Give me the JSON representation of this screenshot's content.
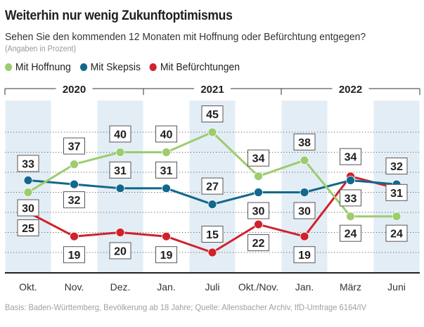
{
  "title": "Weiterhin nur wenig Zukunftoptimismus",
  "subtitle": "Sehen Sie den kommenden 12 Monaten mit Hoffnung oder Befürchtung entgegen?",
  "unit_note": "(Angaben in Prozent)",
  "footer": "Basis: Baden-Württemberg, Bevölkerung ab 18 Jahre; Quelle: Allensbacher Archiv, IfD-Umfrage 6164/IV",
  "chart_data": {
    "type": "line",
    "title": "Weiterhin nur wenig Zukunftoptimismus",
    "xlabel": "",
    "ylabel": "Prozent",
    "categories": [
      "Okt.",
      "Nov.",
      "Dez.",
      "Jan.",
      "Juli",
      "Okt./Nov.",
      "Jan.",
      "März",
      "Juni"
    ],
    "year_groups": [
      {
        "label": "2020",
        "start": 0,
        "end": 2
      },
      {
        "label": "2021",
        "start": 3,
        "end": 5
      },
      {
        "label": "2022",
        "start": 6,
        "end": 8
      }
    ],
    "shaded_columns": [
      0,
      2,
      4,
      6,
      8
    ],
    "series": [
      {
        "name": "Mit Hoffnung",
        "color": "#9ccc6e",
        "values": [
          30,
          37,
          40,
          40,
          45,
          34,
          38,
          24,
          24
        ],
        "label_pos": [
          "below",
          "above",
          "above",
          "above",
          "above",
          "above",
          "above",
          "below",
          "below"
        ]
      },
      {
        "name": "Mit Skepsis",
        "color": "#12688c",
        "values": [
          33,
          32,
          31,
          31,
          27,
          30,
          30,
          33,
          32
        ],
        "label_pos": [
          "above",
          "below",
          "above",
          "above",
          "above",
          "below",
          "below",
          "below",
          "above"
        ]
      },
      {
        "name": "Mit Befürchtungen",
        "color": "#d0222c",
        "values": [
          25,
          19,
          20,
          19,
          15,
          22,
          19,
          34,
          31
        ],
        "label_pos": [
          "below",
          "below",
          "below",
          "below",
          "above",
          "below",
          "below",
          "above",
          "below"
        ]
      }
    ],
    "ylim": [
      12,
      48
    ],
    "grid": true,
    "legend": "top-left"
  }
}
